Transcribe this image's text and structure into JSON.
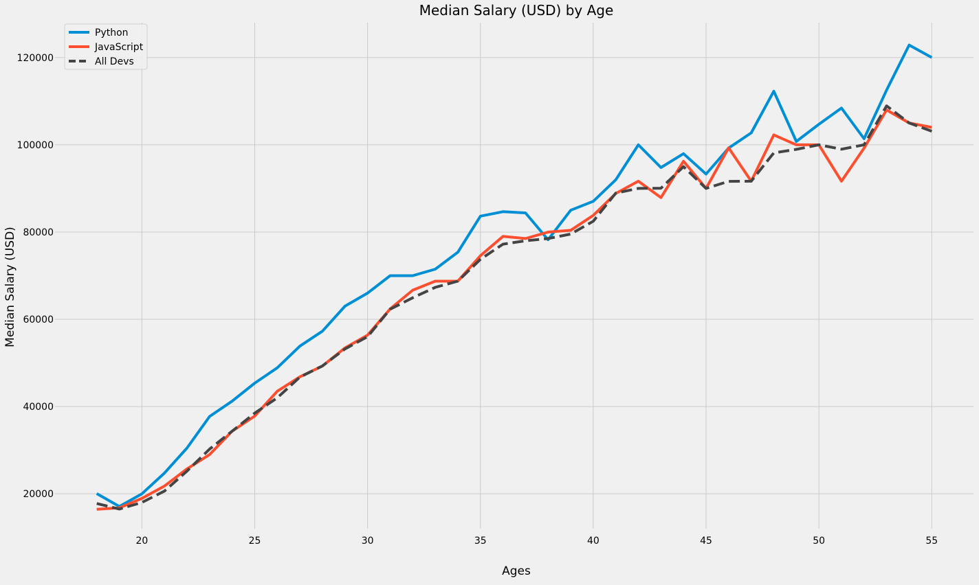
{
  "chart_data": {
    "type": "line",
    "title": "Median Salary (USD) by Age",
    "xlabel": "Ages",
    "ylabel": "Median Salary (USD)",
    "x": [
      18,
      19,
      20,
      21,
      22,
      23,
      24,
      25,
      26,
      27,
      28,
      29,
      30,
      31,
      32,
      33,
      34,
      35,
      36,
      37,
      38,
      39,
      40,
      41,
      42,
      43,
      44,
      45,
      46,
      47,
      48,
      49,
      50,
      51,
      52,
      53,
      54,
      55
    ],
    "xlim": [
      16.15,
      56.85
    ],
    "ylim": [
      12000,
      128000
    ],
    "xticks": [
      20,
      25,
      30,
      35,
      40,
      45,
      50,
      55
    ],
    "yticks": [
      20000,
      40000,
      60000,
      80000,
      100000,
      120000
    ],
    "grid": true,
    "legend_position": "upper-left",
    "series": [
      {
        "name": "Python",
        "color": "#008fd5",
        "style": "solid",
        "values": [
          20046,
          17100,
          20000,
          24744,
          30500,
          37732,
          41247,
          45372,
          48876,
          53850,
          57287,
          63016,
          65998,
          70003,
          70000,
          71496,
          75370,
          83640,
          84666,
          84392,
          78254,
          85000,
          87038,
          91991,
          100000,
          94796,
          97962,
          93302,
          99240,
          102736,
          112285,
          100771,
          104708,
          108423,
          101407,
          112542,
          122870,
          120000
        ]
      },
      {
        "name": "JavaScript",
        "color": "#fc4f30",
        "style": "solid",
        "values": [
          16446,
          16791,
          18942,
          21780,
          25704,
          29000,
          34372,
          37810,
          43515,
          46823,
          49293,
          53437,
          56373,
          62375,
          66674,
          68745,
          68746,
          74583,
          79000,
          78508,
          79996,
          80403,
          83820,
          88833,
          91660,
          87892,
          96243,
          90000,
          99313,
          91660,
          102264,
          100000,
          100000,
          91660,
          99240,
          108000,
          105000,
          104000
        ]
      },
      {
        "name": "All Devs",
        "color": "#444444",
        "style": "dashed",
        "values": [
          17784,
          16500,
          18012,
          20628,
          25206,
          30252,
          34368,
          38496,
          42000,
          46752,
          49320,
          53200,
          56000,
          62316,
          64928,
          67317,
          68748,
          73752,
          77232,
          78000,
          78508,
          79536,
          82488,
          88935,
          90000,
          90056,
          95000,
          90000,
          91633,
          91660,
          98150,
          98964,
          100000,
          98988,
          100000,
          108923,
          105000,
          103117
        ]
      }
    ]
  }
}
